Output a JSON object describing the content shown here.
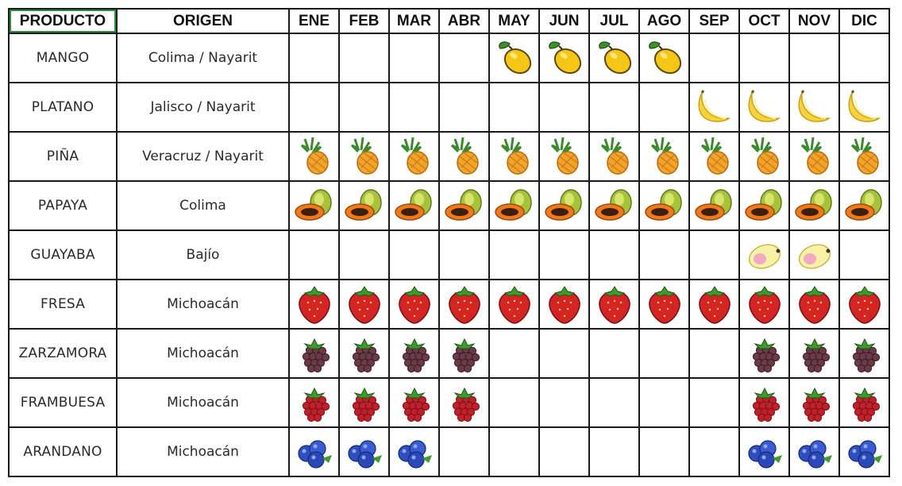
{
  "headers": {
    "product": "PRODUCTO",
    "origin": "ORIGEN",
    "months": [
      "ENE",
      "FEB",
      "MAR",
      "ABR",
      "MAY",
      "JUN",
      "JUL",
      "AGO",
      "SEP",
      "OCT",
      "NOV",
      "DIC"
    ]
  },
  "rows": [
    {
      "product": "MANGO",
      "origin": "Colima / Nayarit",
      "icon": "mango-icon",
      "months": [
        0,
        0,
        0,
        0,
        1,
        1,
        1,
        1,
        0,
        0,
        0,
        0
      ]
    },
    {
      "product": "PLATANO",
      "origin": "Jalisco / Nayarit",
      "icon": "banana-icon",
      "months": [
        0,
        0,
        0,
        0,
        0,
        0,
        0,
        0,
        1,
        1,
        1,
        1
      ]
    },
    {
      "product": "PIÑA",
      "origin": "Veracruz / Nayarit",
      "icon": "pineapple-icon",
      "months": [
        1,
        1,
        1,
        1,
        1,
        1,
        1,
        1,
        1,
        1,
        1,
        1
      ]
    },
    {
      "product": "PAPAYA",
      "origin": "Colima",
      "icon": "papaya-icon",
      "months": [
        1,
        1,
        1,
        1,
        1,
        1,
        1,
        1,
        1,
        1,
        1,
        1
      ]
    },
    {
      "product": "GUAYABA",
      "origin": "Bajío",
      "icon": "guava-icon",
      "months": [
        0,
        0,
        0,
        0,
        0,
        0,
        0,
        0,
        0,
        1,
        1,
        0
      ]
    },
    {
      "product": "FRESA",
      "origin": "Michoacán",
      "icon": "strawberry-icon",
      "months": [
        1,
        1,
        1,
        1,
        1,
        1,
        1,
        1,
        1,
        1,
        1,
        1
      ]
    },
    {
      "product": "ZARZAMORA",
      "origin": "Michoacán",
      "icon": "blackberry-icon",
      "months": [
        1,
        1,
        1,
        1,
        0,
        0,
        0,
        0,
        0,
        1,
        1,
        1
      ]
    },
    {
      "product": "FRAMBUESA",
      "origin": "Michoacán",
      "icon": "raspberry-icon",
      "months": [
        1,
        1,
        1,
        1,
        0,
        0,
        0,
        0,
        0,
        1,
        1,
        1
      ]
    },
    {
      "product": "ARANDANO",
      "origin": "Michoacán",
      "icon": "blueberry-icon",
      "months": [
        1,
        1,
        1,
        0,
        0,
        0,
        0,
        0,
        0,
        1,
        1,
        1
      ]
    }
  ],
  "colors": {
    "grid": "#1a1a1a",
    "selection": "#2e8b3a",
    "text": "#2a2a2a"
  }
}
